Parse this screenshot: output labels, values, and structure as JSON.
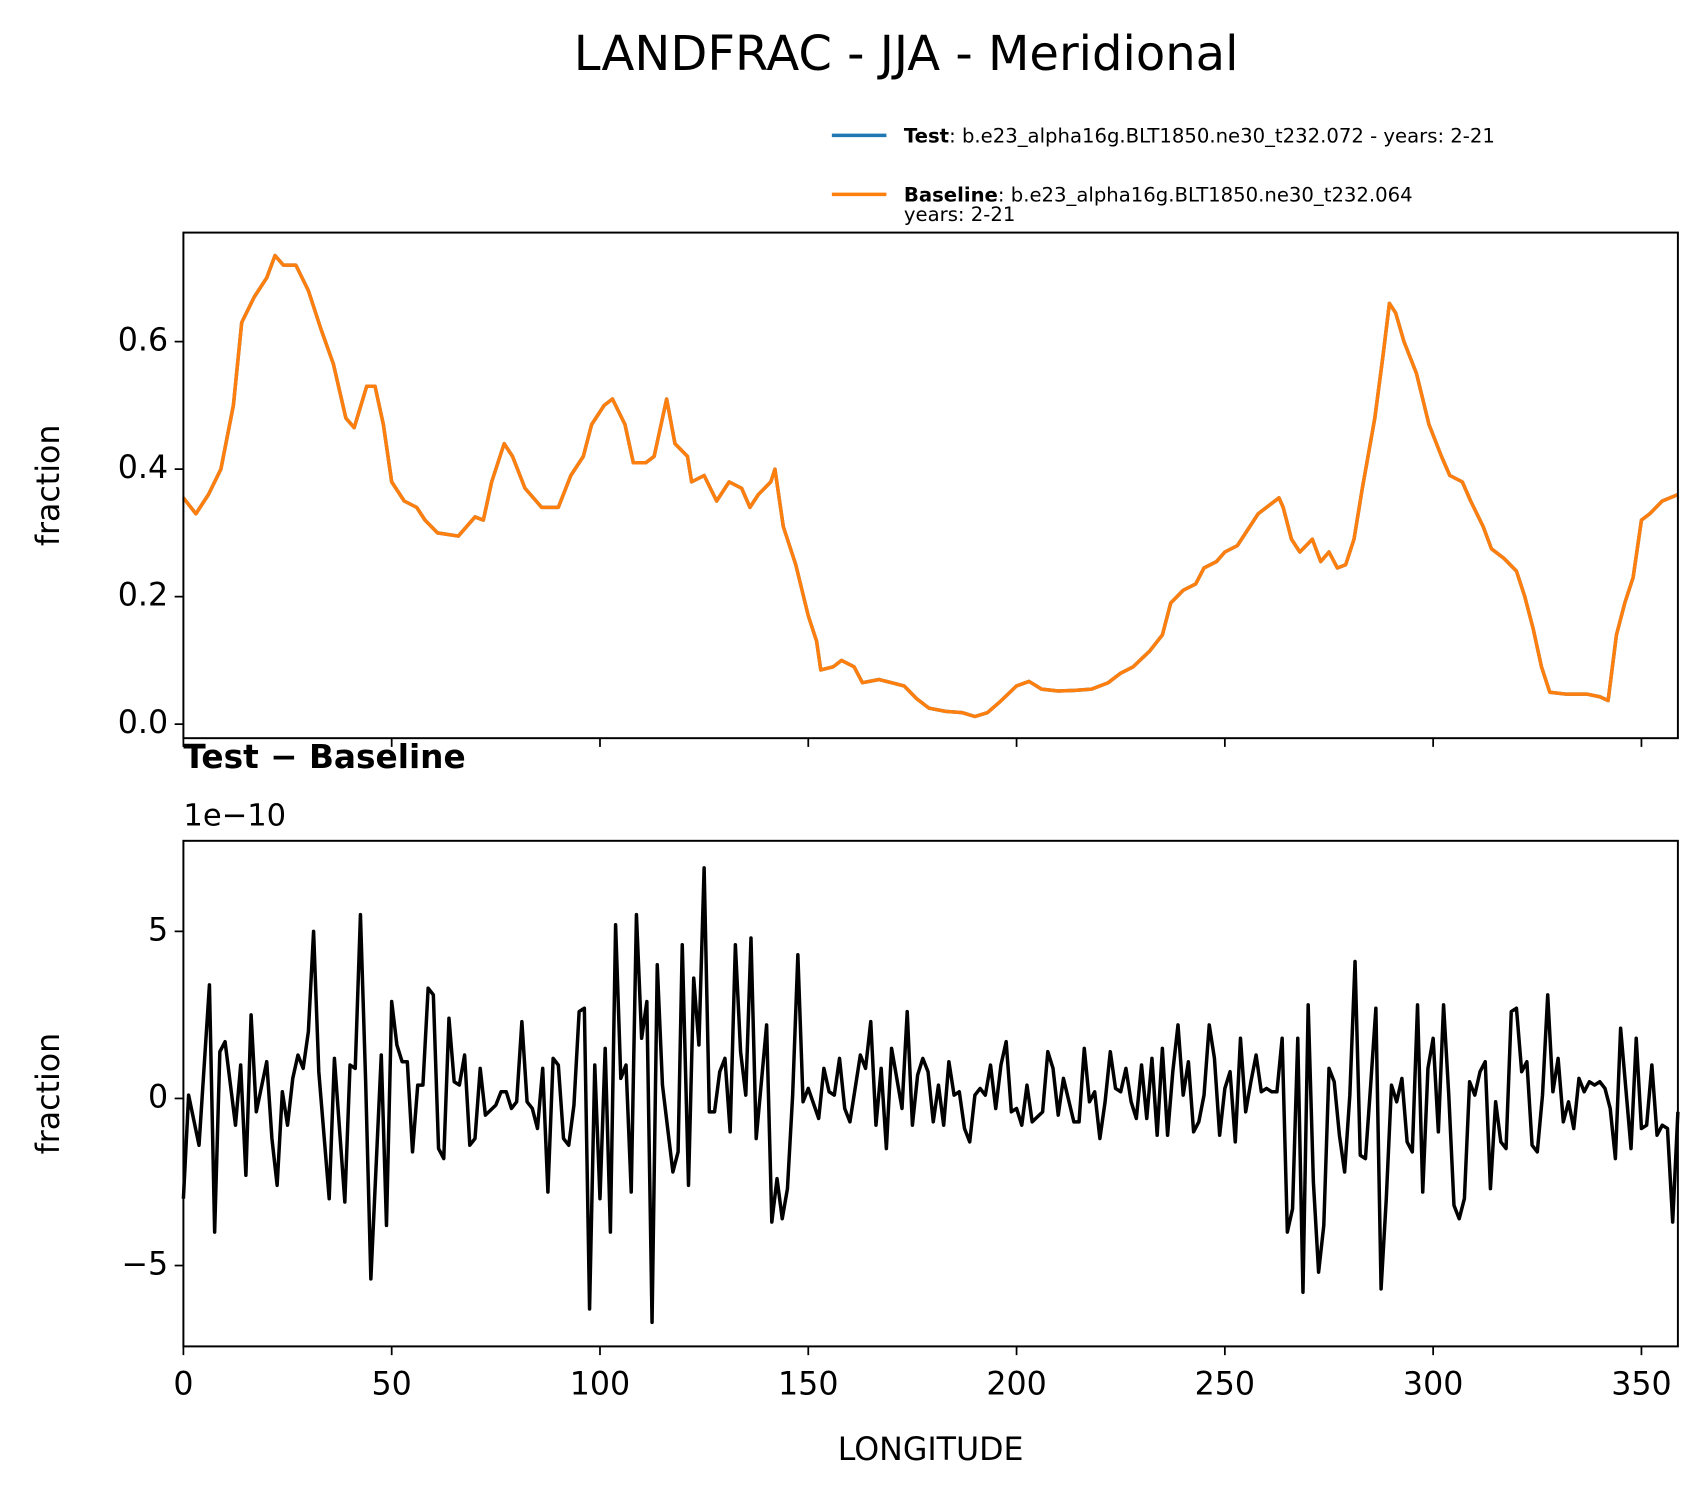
{
  "chart_data": [
    {
      "type": "line",
      "title": "LANDFRAC - JJA - Meridional",
      "y_label": "fraction",
      "x": [
        0,
        3,
        6,
        9,
        12,
        14,
        17,
        20,
        22,
        24,
        27,
        30,
        33,
        36,
        39,
        41,
        44,
        46,
        48,
        50,
        53,
        56,
        58,
        61,
        66,
        70,
        72,
        74,
        77,
        79,
        82,
        86,
        90,
        93,
        96,
        98,
        101,
        103,
        106,
        108,
        111,
        113,
        115,
        116,
        118,
        121,
        122,
        125,
        128,
        131,
        134,
        136,
        138,
        141,
        142,
        144,
        147,
        150,
        152,
        153,
        156,
        158,
        161,
        163,
        167,
        170,
        173,
        176,
        179,
        183,
        187,
        190,
        193,
        196,
        200,
        203,
        206,
        210,
        214,
        218,
        222,
        225,
        228,
        232,
        235,
        237,
        240,
        243,
        245,
        248,
        250,
        253,
        256,
        258,
        261,
        263,
        264,
        266,
        268,
        271,
        273,
        275,
        277,
        279,
        281,
        283,
        286,
        288,
        289.5,
        291,
        293,
        296,
        299,
        302,
        304,
        307,
        309,
        312,
        314,
        317,
        320,
        322,
        324,
        326,
        328,
        332,
        337,
        340,
        342,
        344,
        346,
        348,
        350,
        352,
        355,
        358.75
      ],
      "series": [
        {
          "name": "Test",
          "detail": [
            ": b.e23_alpha16g.BLT1850.ne30_t232.072 - years: 2-21"
          ],
          "color": "#1f77b4",
          "values": [
            0.355,
            0.33,
            0.36,
            0.4,
            0.5,
            0.63,
            0.67,
            0.7,
            0.735,
            0.72,
            0.72,
            0.68,
            0.62,
            0.565,
            0.48,
            0.465,
            0.53,
            0.53,
            0.47,
            0.38,
            0.35,
            0.34,
            0.32,
            0.3,
            0.295,
            0.325,
            0.32,
            0.38,
            0.44,
            0.42,
            0.37,
            0.34,
            0.34,
            0.39,
            0.42,
            0.47,
            0.5,
            0.51,
            0.47,
            0.41,
            0.41,
            0.42,
            0.48,
            0.51,
            0.44,
            0.42,
            0.38,
            0.39,
            0.35,
            0.38,
            0.37,
            0.34,
            0.36,
            0.38,
            0.4,
            0.31,
            0.25,
            0.17,
            0.13,
            0.085,
            0.09,
            0.1,
            0.09,
            0.065,
            0.07,
            0.065,
            0.06,
            0.04,
            0.025,
            0.02,
            0.018,
            0.012,
            0.018,
            0.035,
            0.06,
            0.067,
            0.055,
            0.052,
            0.053,
            0.055,
            0.065,
            0.08,
            0.09,
            0.115,
            0.14,
            0.19,
            0.21,
            0.22,
            0.245,
            0.255,
            0.27,
            0.28,
            0.31,
            0.33,
            0.345,
            0.355,
            0.34,
            0.29,
            0.27,
            0.29,
            0.255,
            0.27,
            0.245,
            0.25,
            0.29,
            0.37,
            0.48,
            0.58,
            0.66,
            0.645,
            0.6,
            0.55,
            0.47,
            0.42,
            0.39,
            0.38,
            0.35,
            0.31,
            0.275,
            0.26,
            0.24,
            0.2,
            0.15,
            0.09,
            0.05,
            0.047,
            0.047,
            0.043,
            0.037,
            0.14,
            0.19,
            0.23,
            0.32,
            0.33,
            0.35,
            0.36
          ]
        },
        {
          "name": "Baseline",
          "detail": [
            ": b.e23_alpha16g.BLT1850.ne30_t232.064",
            "years: 2-21"
          ],
          "color": "#ff7f0e",
          "values": [
            0.355,
            0.33,
            0.36,
            0.4,
            0.5,
            0.63,
            0.67,
            0.7,
            0.735,
            0.72,
            0.72,
            0.68,
            0.62,
            0.565,
            0.48,
            0.465,
            0.53,
            0.53,
            0.47,
            0.38,
            0.35,
            0.34,
            0.32,
            0.3,
            0.295,
            0.325,
            0.32,
            0.38,
            0.44,
            0.42,
            0.37,
            0.34,
            0.34,
            0.39,
            0.42,
            0.47,
            0.5,
            0.51,
            0.47,
            0.41,
            0.41,
            0.42,
            0.48,
            0.51,
            0.44,
            0.42,
            0.38,
            0.39,
            0.35,
            0.38,
            0.37,
            0.34,
            0.36,
            0.38,
            0.4,
            0.31,
            0.25,
            0.17,
            0.13,
            0.085,
            0.09,
            0.1,
            0.09,
            0.065,
            0.07,
            0.065,
            0.06,
            0.04,
            0.025,
            0.02,
            0.018,
            0.012,
            0.018,
            0.035,
            0.06,
            0.067,
            0.055,
            0.052,
            0.053,
            0.055,
            0.065,
            0.08,
            0.09,
            0.115,
            0.14,
            0.19,
            0.21,
            0.22,
            0.245,
            0.255,
            0.27,
            0.28,
            0.31,
            0.33,
            0.345,
            0.355,
            0.34,
            0.29,
            0.27,
            0.29,
            0.255,
            0.27,
            0.245,
            0.25,
            0.29,
            0.37,
            0.48,
            0.58,
            0.66,
            0.645,
            0.6,
            0.55,
            0.47,
            0.42,
            0.39,
            0.38,
            0.35,
            0.31,
            0.275,
            0.26,
            0.24,
            0.2,
            0.15,
            0.09,
            0.05,
            0.047,
            0.047,
            0.043,
            0.037,
            0.14,
            0.19,
            0.23,
            0.32,
            0.33,
            0.35,
            0.36
          ]
        }
      ],
      "xlim": [
        0,
        358.75
      ],
      "ylim": [
        -0.022,
        0.771
      ],
      "xticks": [
        0,
        50,
        100,
        150,
        200,
        250,
        300,
        350
      ],
      "show_xtick_labels": false,
      "yticks": [
        {
          "value": 0,
          "label": "0.0"
        },
        0.2,
        0.4,
        0.6
      ]
    },
    {
      "type": "line",
      "title": "Test − Baseline",
      "offset_label": "1e−10",
      "x_label": "LONGITUDE",
      "y_label": "fraction",
      "color": "#000000",
      "x": [
        0,
        1.25,
        3.75,
        6.25,
        7.5,
        8.75,
        10,
        12.5,
        13.75,
        15,
        16.25,
        17.5,
        20,
        21.25,
        22.5,
        23.75,
        25,
        26.25,
        27.5,
        28.75,
        30,
        31.25,
        32.5,
        35,
        36.25,
        38.75,
        40,
        41.25,
        42.5,
        43.75,
        45,
        47.5,
        48.75,
        50,
        51.25,
        52.5,
        53.75,
        55,
        56.25,
        57.5,
        58.75,
        60,
        61.25,
        62.5,
        63.75,
        65,
        66.25,
        67.5,
        68.75,
        70,
        71.25,
        72.5,
        75,
        76.25,
        77.5,
        78.75,
        80,
        81.25,
        82.5,
        83.75,
        85,
        86.25,
        87.5,
        88.75,
        90,
        91.25,
        92.5,
        93.75,
        95,
        96.25,
        97.5,
        98.75,
        100,
        101.25,
        102.5,
        103.75,
        105,
        106.25,
        107.5,
        108.75,
        110,
        111.25,
        112.5,
        113.75,
        115,
        117.5,
        118.75,
        119.75,
        121.25,
        122.5,
        123.75,
        125,
        126.25,
        127.5,
        128.75,
        130,
        131.25,
        132.5,
        133.75,
        135,
        136.25,
        137.5,
        140,
        141.25,
        142.5,
        143.75,
        145,
        146.25,
        147.5,
        148.75,
        150,
        152.5,
        153.75,
        155,
        156.25,
        157.5,
        158.75,
        160,
        162.5,
        163.75,
        165,
        166.25,
        167.5,
        168.75,
        170,
        172.5,
        173.75,
        175,
        176.25,
        177.5,
        178.75,
        180,
        181.25,
        182.5,
        183.75,
        185,
        186.25,
        187.5,
        188.75,
        190,
        191.25,
        192.5,
        193.75,
        195,
        196.25,
        197.5,
        198.75,
        200,
        201.25,
        202.5,
        203.75,
        206.25,
        207.5,
        208.75,
        210,
        211.25,
        213.75,
        215,
        216.25,
        217.5,
        218.75,
        220,
        221.25,
        222.5,
        223.75,
        225,
        226.25,
        227.5,
        228.75,
        230,
        231.25,
        232.5,
        233.75,
        235,
        236.25,
        237.5,
        238.75,
        240,
        241.25,
        242.5,
        243.75,
        245,
        246.25,
        247.5,
        248.75,
        250,
        251.25,
        252.5,
        253.75,
        255,
        256.25,
        257.5,
        258.75,
        260,
        261.25,
        262.5,
        263.75,
        265,
        266.25,
        267.5,
        268.75,
        270,
        271.25,
        272.5,
        273.75,
        275,
        276.25,
        277.5,
        278.75,
        280,
        281.25,
        282.5,
        283.75,
        285,
        286.25,
        287.5,
        288.75,
        290,
        291.25,
        292.5,
        293.75,
        295,
        296.25,
        297.5,
        298.75,
        300,
        301.25,
        302.5,
        303.75,
        305,
        306.25,
        307.5,
        308.75,
        310,
        311.25,
        312.5,
        313.75,
        315,
        316.25,
        317.5,
        318.75,
        320,
        321.25,
        322.5,
        323.75,
        325,
        326.25,
        327.5,
        328.75,
        330,
        331.25,
        332.5,
        333.75,
        335,
        336.25,
        337.5,
        338.75,
        340,
        341.25,
        342.5,
        343.75,
        345,
        346.25,
        347.5,
        348.75,
        350,
        351.25,
        352.5,
        353.75,
        355,
        356.25,
        357.5,
        358.75
      ],
      "values": [
        -3.0,
        0.1,
        -1.4,
        3.4,
        -4.0,
        1.4,
        1.7,
        -0.8,
        1.0,
        -2.3,
        2.5,
        -0.4,
        1.1,
        -1.2,
        -2.6,
        0.2,
        -0.8,
        0.6,
        1.3,
        0.9,
        2.0,
        5.0,
        0.8,
        -3.0,
        1.2,
        -3.1,
        1.0,
        0.9,
        5.5,
        0.5,
        -5.4,
        1.3,
        -3.8,
        2.9,
        1.6,
        1.1,
        1.1,
        -1.6,
        0.4,
        0.4,
        3.3,
        3.1,
        -1.5,
        -1.8,
        2.4,
        0.5,
        0.4,
        1.3,
        -1.4,
        -1.2,
        0.9,
        -0.5,
        -0.2,
        0.2,
        0.2,
        -0.3,
        -0.1,
        2.3,
        -0.1,
        -0.3,
        -0.9,
        0.9,
        -2.8,
        1.2,
        1.0,
        -1.2,
        -1.4,
        -0.2,
        2.6,
        2.7,
        -6.3,
        1.0,
        -3.0,
        1.5,
        -4.0,
        5.2,
        0.6,
        1.0,
        -2.8,
        5.5,
        1.8,
        2.9,
        -6.7,
        4.0,
        0.4,
        -2.2,
        -1.6,
        4.6,
        -2.6,
        3.6,
        1.6,
        6.9,
        -0.4,
        -0.4,
        0.8,
        1.2,
        -1.0,
        4.6,
        1.4,
        0.1,
        4.8,
        -1.2,
        2.2,
        -3.7,
        -2.4,
        -3.6,
        -2.7,
        0.1,
        4.3,
        -0.1,
        0.3,
        -0.6,
        0.9,
        0.2,
        0.1,
        1.2,
        -0.3,
        -0.7,
        1.3,
        0.9,
        2.3,
        -0.8,
        0.9,
        -1.5,
        1.5,
        -0.3,
        2.6,
        -0.8,
        0.7,
        1.2,
        0.8,
        -0.7,
        0.4,
        -0.8,
        1.1,
        0.1,
        0.2,
        -0.9,
        -1.3,
        0.1,
        0.3,
        0.1,
        1.0,
        -0.3,
        1.0,
        1.7,
        -0.4,
        -0.3,
        -0.8,
        0.4,
        -0.7,
        -0.4,
        1.4,
        0.9,
        -0.5,
        0.6,
        -0.7,
        -0.7,
        1.5,
        -0.1,
        0.2,
        -1.2,
        -0.1,
        1.4,
        0.3,
        0.2,
        0.9,
        -0.1,
        -0.6,
        1.0,
        -0.6,
        1.2,
        -1.1,
        1.5,
        -1.1,
        0.8,
        2.2,
        0.1,
        1.1,
        -1.0,
        -0.7,
        0.1,
        2.2,
        1.2,
        -1.1,
        0.3,
        0.8,
        -1.3,
        1.8,
        -0.4,
        0.5,
        1.3,
        0.2,
        0.3,
        0.2,
        0.2,
        1.8,
        -4.0,
        -3.3,
        1.8,
        -5.8,
        2.8,
        -2.5,
        -5.2,
        -3.8,
        0.9,
        0.5,
        -1.1,
        -2.2,
        0.1,
        4.1,
        -1.7,
        -1.8,
        0.4,
        2.7,
        -5.7,
        -3.0,
        0.4,
        -0.1,
        0.6,
        -1.3,
        -1.6,
        2.8,
        -2.8,
        0.9,
        1.8,
        -1.0,
        2.8,
        0.1,
        -3.2,
        -3.6,
        -3.0,
        0.5,
        0.1,
        0.8,
        1.1,
        -2.7,
        -0.1,
        -1.3,
        -1.5,
        2.6,
        2.7,
        0.8,
        1.1,
        -1.4,
        -1.6,
        0.1,
        3.1,
        0.2,
        1.2,
        -0.7,
        -0.1,
        -0.9,
        0.6,
        0.2,
        0.5,
        0.4,
        0.5,
        0.3,
        -0.3,
        -1.8,
        2.1,
        0.3,
        -1.5,
        1.8,
        -0.9,
        -0.8,
        1.0,
        -1.1,
        -0.8,
        -0.9,
        -3.7,
        -0.4
      ],
      "xlim": [
        0,
        358.75
      ],
      "ylim": [
        -7.42,
        7.71
      ],
      "xticks": [
        0,
        50,
        100,
        150,
        200,
        250,
        300,
        350
      ],
      "show_xtick_labels": true,
      "yticks": [
        {
          "value": -5,
          "label": "−5"
        },
        0,
        5
      ]
    }
  ]
}
